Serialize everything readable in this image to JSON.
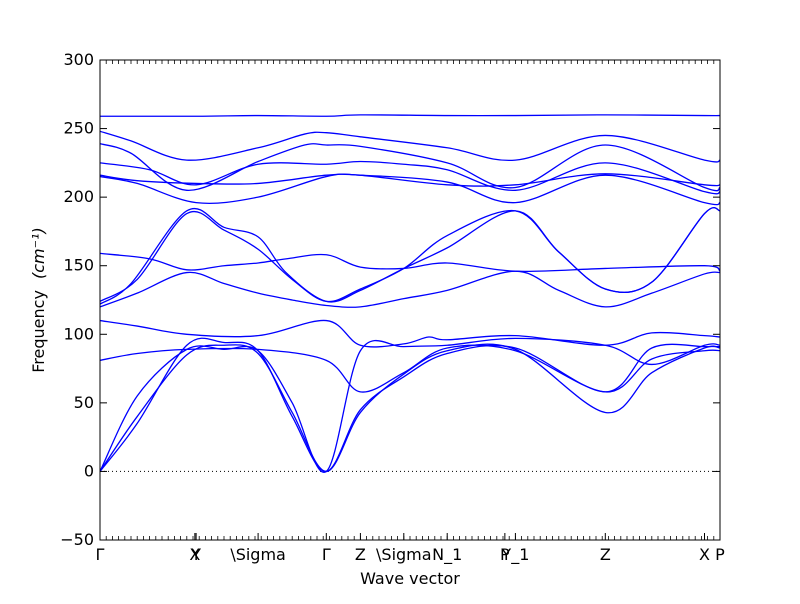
{
  "chart_data": {
    "type": "line",
    "title": "",
    "xlabel": "Wave vector",
    "ylabel": "Frequency",
    "ylabel_unit": "(cm⁻¹)",
    "ylim": [
      -50,
      300
    ],
    "yticks": [
      -50,
      0,
      50,
      100,
      150,
      200,
      250,
      300
    ],
    "xlim": [
      0,
      1
    ],
    "xticks": [
      {
        "pos": 0.0,
        "label": "Γ"
      },
      {
        "pos": 0.153,
        "label": "X"
      },
      {
        "pos": 0.155,
        "label": "Y"
      },
      {
        "pos": 0.255,
        "label": "\\Sigma"
      },
      {
        "pos": 0.365,
        "label": "Γ"
      },
      {
        "pos": 0.42,
        "label": "Z"
      },
      {
        "pos": 0.49,
        "label": "\\Sigma"
      },
      {
        "pos": 0.56,
        "label": "N_1"
      },
      {
        "pos": 0.653,
        "label": "P"
      },
      {
        "pos": 0.67,
        "label": "Y_1"
      },
      {
        "pos": 0.815,
        "label": "Z"
      },
      {
        "pos": 0.975,
        "label": "X"
      },
      {
        "pos": 1.0,
        "label": "P"
      }
    ],
    "zero_line": true,
    "line_color": "#0000ff",
    "series": [
      {
        "x": [
          0,
          0.155,
          0.255,
          0.365,
          0.42,
          0.56,
          0.67,
          0.815,
          0.975,
          1
        ],
        "y": [
          259,
          259,
          259.5,
          259,
          260,
          259.5,
          259.5,
          260,
          259.5,
          259.5
        ]
      },
      {
        "x": [
          0,
          0.05,
          0.14,
          0.255,
          0.33,
          0.365,
          0.42,
          0.56,
          0.67,
          0.815,
          0.975,
          1
        ],
        "y": [
          248,
          241,
          227,
          236,
          246,
          247,
          244,
          236,
          227,
          245,
          227,
          227
        ]
      },
      {
        "x": [
          0,
          0.05,
          0.14,
          0.255,
          0.33,
          0.365,
          0.42,
          0.56,
          0.67,
          0.815,
          0.975,
          1
        ],
        "y": [
          239,
          232,
          205,
          226,
          238,
          238,
          237,
          225,
          207,
          238,
          207,
          207
        ]
      },
      {
        "x": [
          0,
          0.08,
          0.155,
          0.255,
          0.365,
          0.42,
          0.49,
          0.56,
          0.67,
          0.815,
          0.975,
          1
        ],
        "y": [
          225,
          220,
          209,
          224,
          224,
          226,
          224,
          220,
          205,
          225,
          204,
          204
        ]
      },
      {
        "x": [
          0,
          0.06,
          0.155,
          0.255,
          0.365,
          0.42,
          0.56,
          0.67,
          0.815,
          0.975,
          1
        ],
        "y": [
          216,
          212,
          210,
          210,
          216,
          216,
          209,
          209,
          217,
          209,
          209
        ]
      },
      {
        "x": [
          0,
          0.06,
          0.155,
          0.255,
          0.365,
          0.42,
          0.56,
          0.67,
          0.815,
          0.975,
          1
        ],
        "y": [
          215,
          210,
          196,
          200,
          215,
          216,
          211,
          196,
          216,
          196,
          196
        ]
      },
      {
        "x": [
          0,
          0.08,
          0.14,
          0.2,
          0.255,
          0.3,
          0.365,
          0.42,
          0.49,
          0.56,
          0.67,
          0.815,
          0.975,
          1
        ],
        "y": [
          159,
          155,
          147,
          150,
          152,
          155,
          158,
          149,
          148,
          152,
          146,
          148,
          150,
          146
        ]
      },
      {
        "x": [
          0,
          0.06,
          0.14,
          0.2,
          0.255,
          0.31,
          0.365,
          0.42,
          0.49,
          0.56,
          0.67,
          0.74,
          0.815,
          0.89,
          0.975,
          1
        ],
        "y": [
          124,
          140,
          188,
          176,
          162,
          140,
          124,
          133,
          148,
          172,
          190,
          160,
          133,
          138,
          188,
          190
        ]
      },
      {
        "x": [
          0,
          0.05,
          0.14,
          0.2,
          0.255,
          0.3,
          0.365,
          0.42,
          0.49,
          0.56,
          0.67,
          0.74,
          0.815,
          0.89,
          0.975,
          1
        ],
        "y": [
          122,
          137,
          190,
          178,
          171,
          145,
          124,
          132,
          148,
          163,
          190,
          160,
          133,
          138,
          188,
          190
        ]
      },
      {
        "x": [
          0,
          0.06,
          0.14,
          0.2,
          0.255,
          0.31,
          0.365,
          0.42,
          0.49,
          0.56,
          0.67,
          0.74,
          0.815,
          0.89,
          0.975,
          1
        ],
        "y": [
          120,
          130,
          145,
          137,
          130,
          125,
          121,
          120,
          126,
          132,
          146,
          132,
          120,
          130,
          144,
          145
        ]
      },
      {
        "x": [
          0,
          0.06,
          0.14,
          0.255,
          0.365,
          0.42,
          0.49,
          0.53,
          0.56,
          0.67,
          0.815,
          0.89,
          0.975,
          1
        ],
        "y": [
          110,
          106,
          100,
          99,
          110,
          92,
          93,
          98,
          96,
          99,
          92,
          101,
          99,
          98
        ]
      },
      {
        "x": [
          0,
          0.06,
          0.14,
          0.255,
          0.365,
          0.42,
          0.49,
          0.56,
          0.67,
          0.815,
          0.89,
          0.975,
          1
        ],
        "y": [
          81,
          86,
          89,
          89,
          81,
          58,
          72,
          90,
          88,
          58,
          82,
          88,
          88
        ]
      },
      {
        "x": [
          0,
          0.06,
          0.14,
          0.2,
          0.255,
          0.31,
          0.365,
          0.42,
          0.49,
          0.56,
          0.67,
          0.815,
          0.89,
          0.975,
          1
        ],
        "y": [
          0,
          55,
          89,
          89,
          88,
          50,
          0,
          88,
          91,
          92,
          97,
          92,
          78,
          92,
          92
        ]
      },
      {
        "x": [
          0,
          0.06,
          0.14,
          0.2,
          0.255,
          0.31,
          0.365,
          0.42,
          0.49,
          0.56,
          0.67,
          0.815,
          0.89,
          0.975,
          1
        ],
        "y": [
          0,
          40,
          85,
          92,
          86,
          43,
          0,
          43,
          71,
          88,
          89,
          43,
          72,
          90,
          90
        ]
      },
      {
        "x": [
          0,
          0.06,
          0.14,
          0.2,
          0.255,
          0.31,
          0.365,
          0.42,
          0.49,
          0.56,
          0.67,
          0.815,
          0.89,
          0.975,
          1
        ],
        "y": [
          0,
          35,
          92,
          94,
          88,
          40,
          0,
          45,
          69,
          86,
          90,
          58,
          90,
          91,
          91
        ]
      }
    ]
  }
}
